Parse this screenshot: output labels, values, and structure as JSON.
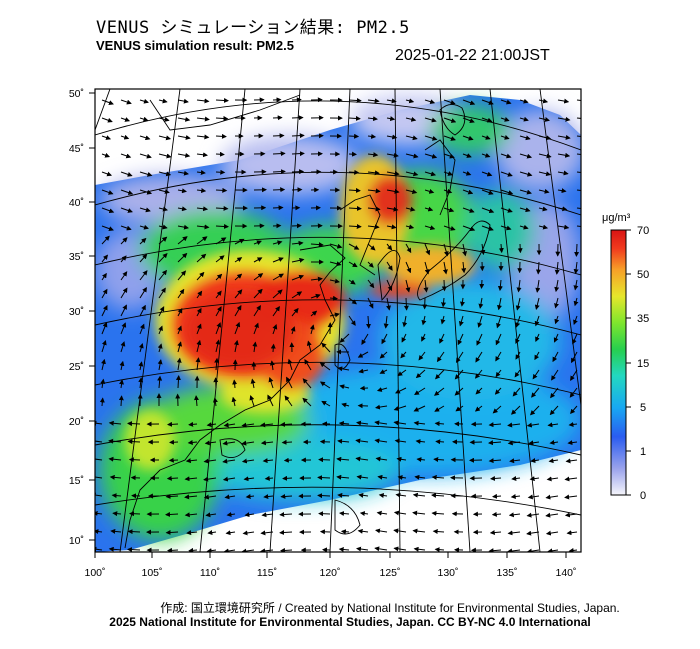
{
  "title_jp": "VENUS シミュレーション結果: PM2.5",
  "title_en": "VENUS simulation result: PM2.5",
  "timestamp": "2025-01-22 21:00JST",
  "credit_line1": "作成: 国立環境研究所 / Created by National Institute for Environmental Studies, Japan.",
  "credit_line2": "2025 National Institute for Environmental Studies, Japan. CC BY-NC 4.0 International",
  "map": {
    "lon_ticks": [
      "100˚",
      "105˚",
      "110˚",
      "115˚",
      "120˚",
      "125˚",
      "130˚",
      "135˚",
      "140˚"
    ],
    "lat_ticks": [
      "50˚",
      "45˚",
      "40˚",
      "35˚",
      "30˚",
      "25˚",
      "20˚",
      "15˚",
      "10˚"
    ]
  },
  "colorbar": {
    "unit_label": "μg/m³",
    "tick_labels": [
      "70",
      "50",
      "35",
      "15",
      "5",
      "1",
      "0"
    ],
    "colors": [
      "#f6f6fb",
      "#9aa3ec",
      "#2a5cf0",
      "#18a8f2",
      "#23d8c0",
      "#27cf4e",
      "#7fe62d",
      "#e6e62b",
      "#f7a028",
      "#f03a1e",
      "#d81414"
    ]
  }
}
